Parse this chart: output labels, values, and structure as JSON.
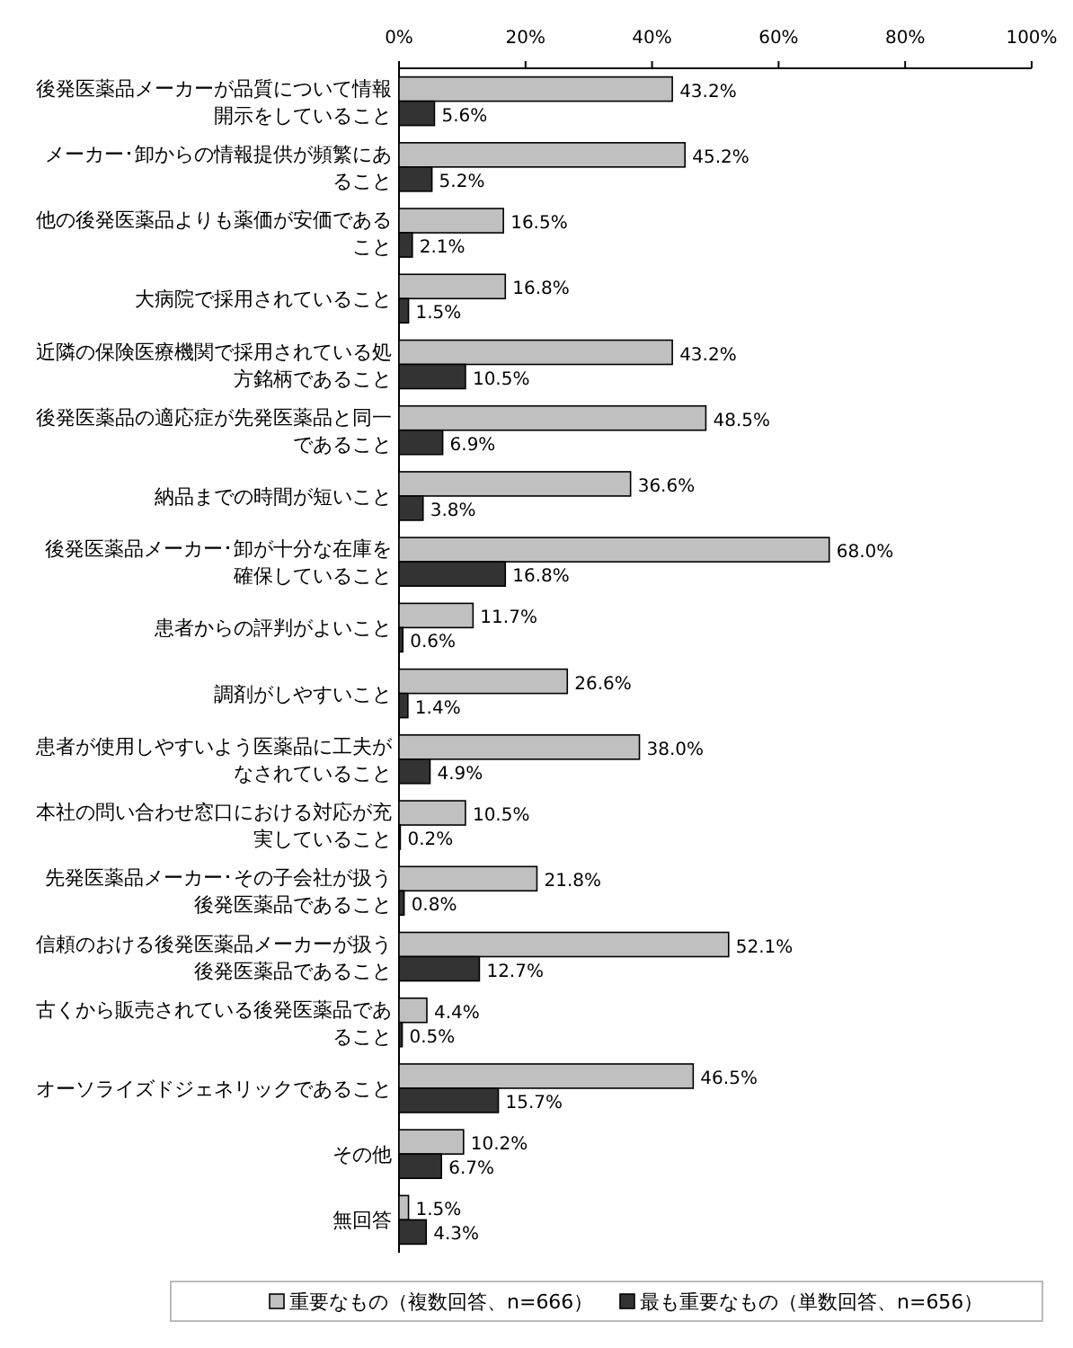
{
  "chart_data": {
    "type": "bar",
    "orientation": "horizontal",
    "legend": "bottom",
    "grid": false,
    "categories": [
      "後発医薬品メーカーが品質について情報開示をしていること",
      "メーカー･卸からの情報提供が頻繁にあること",
      "他の後発医薬品よりも薬価が安価であること",
      "大病院で採用されていること",
      "近隣の保険医療機関で採用されている処方銘柄であること",
      "後発医薬品の適応症が先発医薬品と同一であること",
      "納品までの時間が短いこと",
      "後発医薬品メーカー･卸が十分な在庫を確保していること",
      "患者からの評判がよいこと",
      "調剤がしやすいこと",
      "患者が使用しやすいよう医薬品に工夫がなされていること",
      "本社の問い合わせ窓口における対応が充実していること",
      "先発医薬品メーカー･その子会社が扱う後発医薬品であること",
      "信頼のおける後発医薬品メーカーが扱う後発医薬品であること",
      "古くから販売されている後発医薬品であること",
      "オーソライズドジェネリックであること",
      "その他",
      "無回答"
    ],
    "xlim": [
      0,
      100
    ],
    "xticks": [
      {
        "value": 0,
        "label": "0%"
      },
      {
        "value": 20,
        "label": "20%"
      },
      {
        "value": 40,
        "label": "40%"
      },
      {
        "value": 60,
        "label": "60%"
      },
      {
        "value": 80,
        "label": "80%"
      },
      {
        "value": 100,
        "label": "100%"
      }
    ],
    "series": [
      {
        "name": "重要なもの（複数回答、n=666）",
        "color": "#c0c0c0",
        "values": [
          43.2,
          45.2,
          16.5,
          16.8,
          43.2,
          48.5,
          36.6,
          68.0,
          11.7,
          26.6,
          38.0,
          10.5,
          21.8,
          52.1,
          4.4,
          46.5,
          10.2,
          1.5
        ],
        "value_labels": [
          "43.2%",
          "45.2%",
          "16.5%",
          "16.8%",
          "43.2%",
          "48.5%",
          "36.6%",
          "68.0%",
          "11.7%",
          "26.6%",
          "38.0%",
          "10.5%",
          "21.8%",
          "52.1%",
          "4.4%",
          "46.5%",
          "10.2%",
          "1.5%"
        ]
      },
      {
        "name": "最も重要なもの（単数回答、n=656）",
        "color": "#333333",
        "values": [
          5.6,
          5.2,
          2.1,
          1.5,
          10.5,
          6.9,
          3.8,
          16.8,
          0.6,
          1.4,
          4.9,
          0.2,
          0.8,
          12.7,
          0.5,
          15.7,
          6.7,
          4.3
        ],
        "value_labels": [
          "5.6%",
          "5.2%",
          "2.1%",
          "1.5%",
          "10.5%",
          "6.9%",
          "3.8%",
          "16.8%",
          "0.6%",
          "1.4%",
          "4.9%",
          "0.2%",
          "0.8%",
          "12.7%",
          "0.5%",
          "15.7%",
          "6.7%",
          "4.3%"
        ]
      }
    ]
  }
}
